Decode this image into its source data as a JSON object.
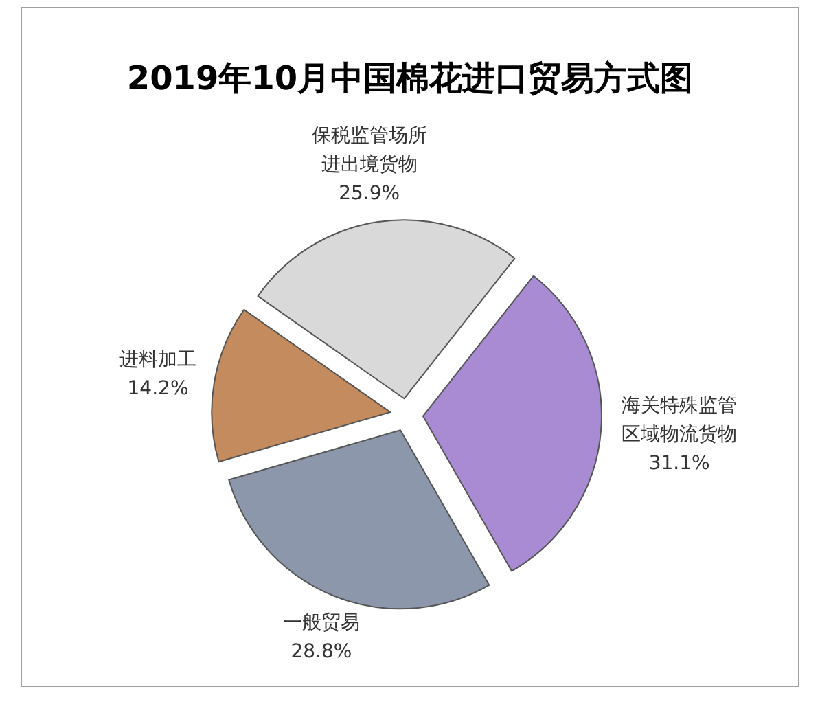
{
  "chart_data": {
    "type": "pie",
    "title": "2019年10月中国棉花进口贸易方式图",
    "categories": [
      "保税监管场所进出境货物",
      "海关特殊监管区域物流货物",
      "一般贸易",
      "进料加工"
    ],
    "values": [
      25.9,
      31.1,
      28.8,
      14.2
    ],
    "colors": [
      "#d9d9d9",
      "#a98bd4",
      "#8d97ab",
      "#c48c5e"
    ],
    "value_labels": [
      "25.9%",
      "31.1%",
      "28.8%",
      "14.2%"
    ]
  }
}
